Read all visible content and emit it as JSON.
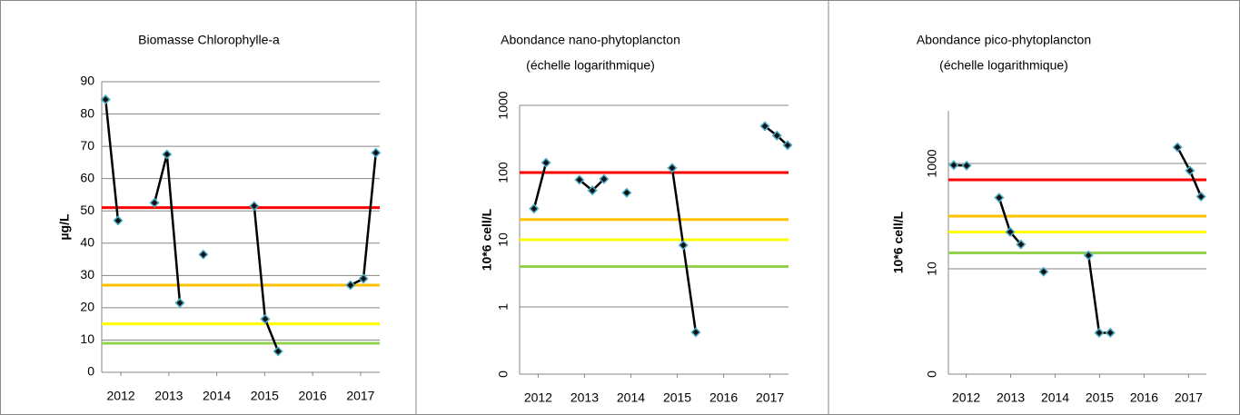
{
  "chart_data": [
    {
      "type": "line",
      "title": "Biomasse Chlorophylle-a",
      "y_label": "µg/L",
      "x": [
        2011.68,
        2011.94,
        null,
        2012.7,
        2012.96,
        2013.23,
        null,
        2013.72,
        null,
        2014.78,
        2015.01,
        2015.28,
        null,
        2016.79,
        2017.06,
        2017.32
      ],
      "values": [
        84.5,
        47,
        null,
        52.5,
        67.5,
        21.5,
        null,
        36.5,
        null,
        51.5,
        16.5,
        6.5,
        null,
        27,
        29,
        68
      ],
      "color": "#000000",
      "marker_color": "#4bacc6",
      "xlim": [
        2011.6,
        2017.4
      ],
      "xticks": [
        2012,
        2013,
        2014,
        2015,
        2016,
        2017
      ],
      "ylim": [
        0,
        90
      ],
      "yticks": [
        0,
        10,
        20,
        30,
        40,
        50,
        60,
        70,
        80,
        90
      ],
      "log_scale": false,
      "grid": true,
      "thresholds": [
        {
          "value": 51,
          "color": "#ff0000"
        },
        {
          "value": 27,
          "color": "#ffc000"
        },
        {
          "value": 15,
          "color": "#ffff00"
        },
        {
          "value": 9,
          "color": "#92d050"
        }
      ]
    },
    {
      "type": "line",
      "title": "Abondance nano-phytoplancton",
      "subtitle": "(échelle logarithmique)",
      "y_label": "10*6 cell/L",
      "x": [
        2011.91,
        2012.17,
        null,
        2012.89,
        2013.17,
        2013.42,
        null,
        2013.91,
        null,
        2014.89,
        2015.13,
        2015.4,
        null,
        2016.89,
        2017.15,
        2017.38
      ],
      "values": [
        29,
        140,
        null,
        78,
        54,
        80,
        null,
        50,
        null,
        117,
        8.3,
        0.42,
        null,
        490,
        355,
        255
      ],
      "color": "#000000",
      "marker_color": "#4bacc6",
      "xlim": [
        2011.6,
        2017.4
      ],
      "xticks": [
        2012,
        2013,
        2014,
        2015,
        2016,
        2017
      ],
      "ylim": [
        0.1,
        1000
      ],
      "yticks": [
        {
          "value": 0.1,
          "label": "0"
        },
        1,
        10,
        100,
        1000
      ],
      "log_scale": true,
      "grid": true,
      "thresholds": [
        {
          "value": 100,
          "color": "#ff0000"
        },
        {
          "value": 20,
          "color": "#ffc000"
        },
        {
          "value": 10,
          "color": "#ffff00"
        },
        {
          "value": 4,
          "color": "#92d050"
        }
      ]
    },
    {
      "type": "line",
      "title": "Abondance pico-phytoplancton",
      "subtitle": "(échelle logarithmique)",
      "y_label": "10*6 cell/L",
      "x": [
        2011.72,
        2012.01,
        null,
        2012.74,
        2012.99,
        2013.23,
        null,
        2013.74,
        null,
        2014.75,
        2014.99,
        2015.24,
        null,
        2016.75,
        2017.03,
        2017.28
      ],
      "values": [
        930,
        910,
        null,
        224,
        50,
        29,
        null,
        8.8,
        null,
        18,
        0.61,
        0.61,
        null,
        2030,
        730,
        235
      ],
      "color": "#000000",
      "marker_color": "#4bacc6",
      "xlim": [
        2011.6,
        2017.4
      ],
      "xticks": [
        2012,
        2013,
        2014,
        2015,
        2016,
        2017
      ],
      "ylim": [
        0.1,
        10000
      ],
      "yticks": [
        {
          "value": 0.1,
          "label": "0"
        },
        10,
        1000
      ],
      "log_scale": true,
      "grid": true,
      "thresholds": [
        {
          "value": 490,
          "color": "#ff0000"
        },
        {
          "value": 100,
          "color": "#ffc000"
        },
        {
          "value": 50,
          "color": "#ffff00"
        },
        {
          "value": 20,
          "color": "#92d050"
        }
      ]
    }
  ]
}
